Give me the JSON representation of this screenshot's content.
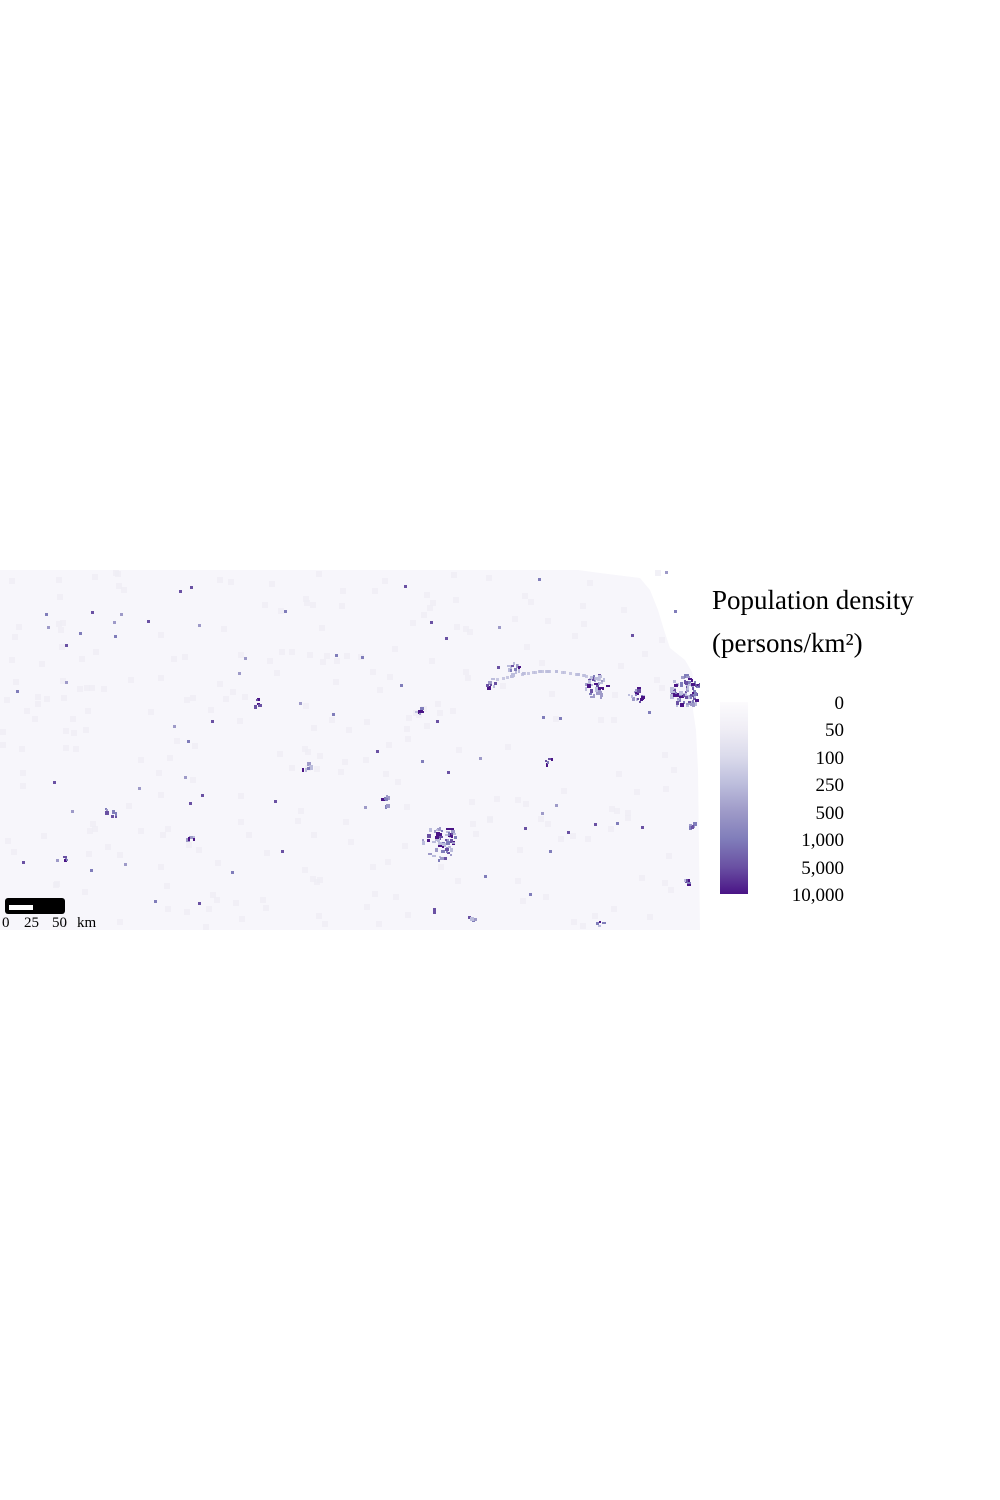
{
  "legend": {
    "title_line1": "Population density",
    "title_line2": "(persons/km²)",
    "breaks": [
      "0",
      "50",
      "100",
      "250",
      "500",
      "1,000",
      "5,000",
      "10,000"
    ],
    "colors": [
      "#fcfbfd",
      "#efedf5",
      "#dadaeb",
      "#bcbddc",
      "#9e9ac8",
      "#807dba",
      "#6a51a3",
      "#4a1486"
    ]
  },
  "scale_bar": {
    "labels": [
      "0",
      "25",
      "50",
      "km"
    ]
  },
  "map": {
    "background_color": "#f7f6fb",
    "accent_color": "#54278f"
  }
}
